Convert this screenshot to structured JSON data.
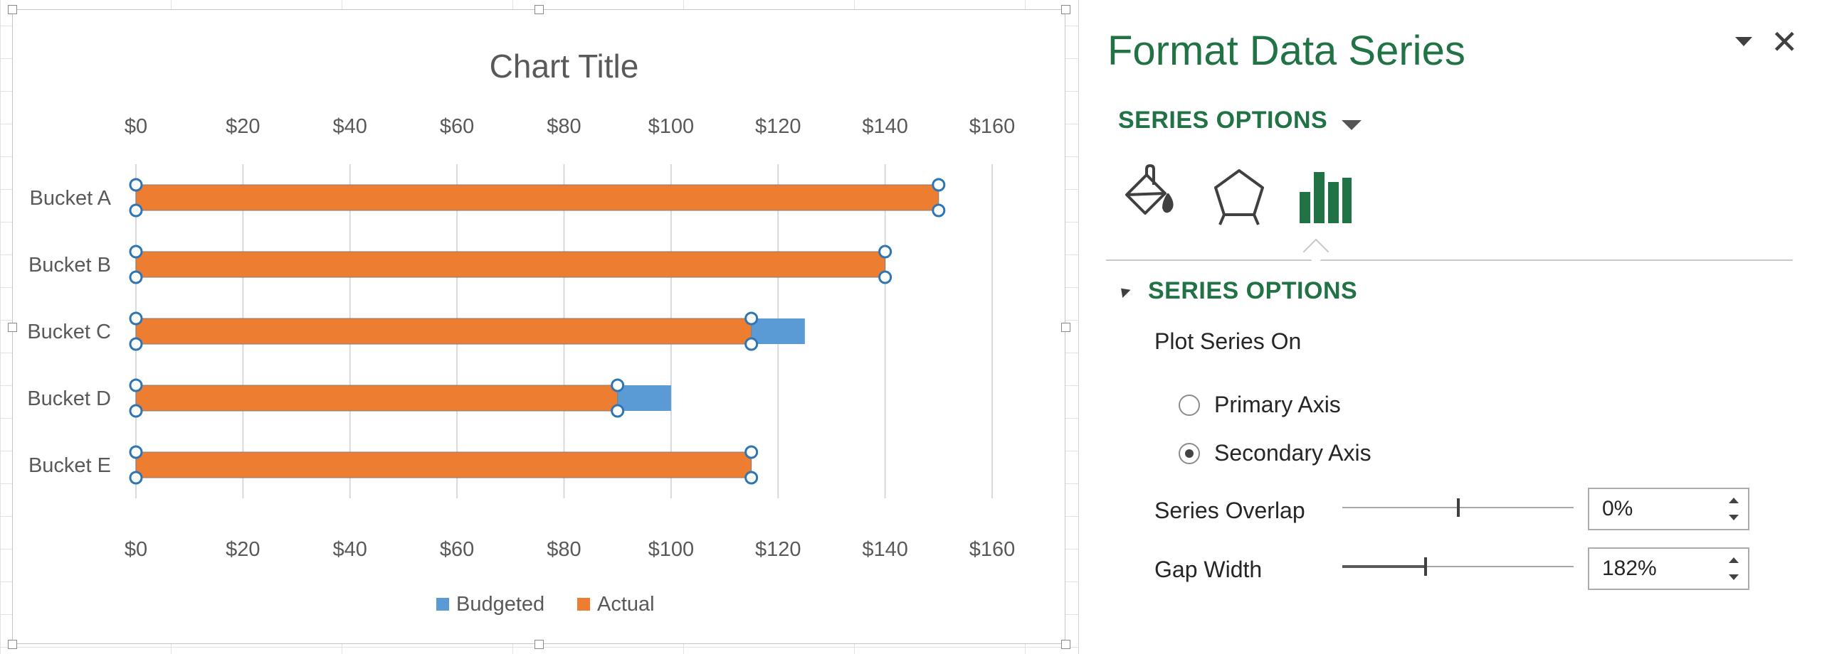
{
  "chart_data": {
    "type": "bar",
    "orientation": "horizontal",
    "title": "Chart Title",
    "categories": [
      "Bucket A",
      "Bucket B",
      "Bucket C",
      "Bucket D",
      "Bucket E"
    ],
    "series": [
      {
        "name": "Budgeted",
        "values": [
          150,
          140,
          125,
          100,
          115
        ],
        "color": "#5B9BD5",
        "axis": "primary"
      },
      {
        "name": "Actual",
        "values": [
          150,
          140,
          115,
          90,
          115
        ],
        "color": "#ED7D31",
        "axis": "secondary"
      }
    ],
    "xlim": [
      0,
      160
    ],
    "xticks": [
      0,
      20,
      40,
      60,
      80,
      100,
      120,
      140,
      160
    ],
    "xtick_labels": [
      "$0",
      "$20",
      "$40",
      "$60",
      "$80",
      "$100",
      "$120",
      "$140",
      "$160"
    ],
    "secondary_axis_position": "top",
    "legend": {
      "position": "bottom",
      "entries": [
        "Budgeted",
        "Actual"
      ]
    },
    "grid": true,
    "selected_series": "Actual"
  },
  "pane": {
    "title": "Format Data Series",
    "options_dropdown": "SERIES OPTIONS",
    "tabs": [
      {
        "icon": "fill-line-icon"
      },
      {
        "icon": "effects-icon"
      },
      {
        "icon": "series-options-icon",
        "selected": true
      }
    ],
    "section_title": "SERIES OPTIONS",
    "plot_series_on_label": "Plot Series On",
    "radio_options": [
      {
        "label": "Primary Axis",
        "checked": false
      },
      {
        "label": "Secondary Axis",
        "checked": true
      }
    ],
    "series_overlap": {
      "label": "Series Overlap",
      "value": "0%",
      "level": 0.5
    },
    "gap_width": {
      "label": "Gap Width",
      "value": "182%",
      "level": 0.36
    },
    "colors": {
      "accent": "#217346",
      "text": "#262626"
    }
  }
}
